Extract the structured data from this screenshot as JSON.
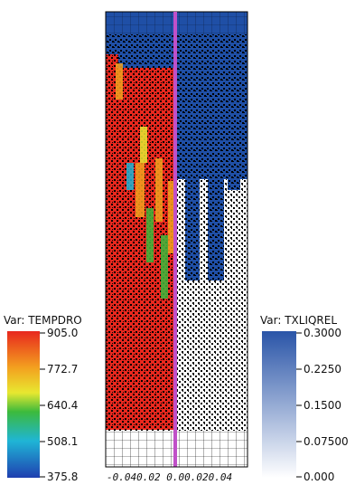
{
  "left_colorbar": {
    "title": "Var: TEMPDRO",
    "ticks": [
      "905.0",
      "772.7",
      "640.4",
      "508.1",
      "375.8"
    ],
    "tick_values": [
      905.0,
      772.7,
      640.4,
      508.1,
      375.8
    ],
    "range": [
      375.8,
      905.0
    ],
    "colormap": "rainbow"
  },
  "right_colorbar": {
    "title": "Var: TXLIQREL",
    "ticks": [
      "0.3000",
      "0.2250",
      "0.1500",
      "0.07500",
      "0.000"
    ],
    "tick_values": [
      0.3,
      0.225,
      0.15,
      0.075,
      0.0
    ],
    "range": [
      0.0,
      0.3
    ],
    "colormap": "white-to-blue"
  },
  "x_axis": {
    "ticks": [
      "-0.04",
      "0.02",
      "0.00",
      "0.02",
      "0.04"
    ],
    "tick_label_text": "-0.040.02 0.00.020.04"
  },
  "colors": {
    "hot": "#e8281e",
    "blue": "#1f4fa6",
    "interface_line": "#c050c8",
    "grid": "#000000"
  }
}
